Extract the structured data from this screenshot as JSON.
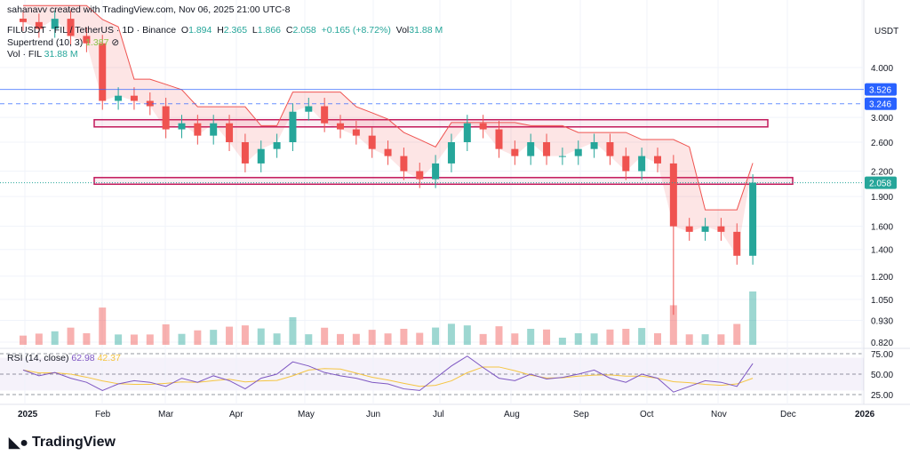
{
  "attribution": "sahanavv created with TradingView.com, Nov 06, 2025 21:00 UTC-8",
  "legend": {
    "symbol": "FILUSDT · FIL / TetherUS · 1D · Binance",
    "open_label": "O",
    "open": "1.894",
    "high_label": "H",
    "high": "2.365",
    "low_label": "L",
    "low": "1.866",
    "close_label": "C",
    "close": "2.058",
    "change": "+0.165 (+8.72%)",
    "vol_label": "Vol",
    "vol": "31.88 M",
    "supertrend": "Supertrend (10, 3)",
    "supertrend_value": "1.387",
    "volume": "Vol · FIL",
    "volume_value": "31.88 M",
    "rsi": "RSI (14, close)",
    "rsi_value": "62.98",
    "rsi_ma_value": "42.37"
  },
  "logo_text": "TradingView",
  "chart_data": {
    "type": "candlestick",
    "currency": "USDT",
    "scale": "log",
    "ylim": [
      0.78,
      4.9
    ],
    "price_ticks": [
      "4.000",
      "3.000",
      "2.600",
      "2.200",
      "1.900",
      "1.600",
      "1.400",
      "1.200",
      "1.050",
      "0.930",
      "0.820"
    ],
    "rsi_ticks": [
      "75.00",
      "50.00",
      "25.00"
    ],
    "x_ticks": [
      "2025",
      "Feb",
      "Mar",
      "Apr",
      "May",
      "Jun",
      "Jul",
      "Aug",
      "Sep",
      "Oct",
      "Nov",
      "Dec",
      "2026"
    ],
    "weekly_close": [
      5.2,
      5.0,
      5.3,
      4.8,
      4.6,
      3.3,
      3.4,
      3.3,
      3.2,
      2.8,
      2.9,
      2.7,
      2.9,
      2.6,
      2.3,
      2.5,
      2.6,
      3.1,
      3.2,
      2.9,
      2.8,
      2.7,
      2.5,
      2.4,
      2.2,
      2.1,
      2.3,
      2.6,
      2.9,
      2.8,
      2.5,
      2.4,
      2.6,
      2.4,
      2.4,
      2.5,
      2.6,
      2.4,
      2.2,
      2.4,
      2.3,
      1.6,
      1.55,
      1.6,
      1.55,
      1.35,
      2.058
    ],
    "rsi": [
      55,
      48,
      52,
      45,
      40,
      30,
      38,
      42,
      40,
      35,
      45,
      40,
      48,
      42,
      32,
      45,
      50,
      65,
      60,
      52,
      48,
      45,
      40,
      38,
      32,
      30,
      45,
      60,
      72,
      58,
      45,
      42,
      50,
      44,
      46,
      50,
      55,
      45,
      40,
      50,
      45,
      28,
      35,
      42,
      40,
      35,
      62.98
    ],
    "lines": [
      {
        "price": 3.526,
        "label": "3.526",
        "style": "solid",
        "color": "#2962ff"
      },
      {
        "price": 3.246,
        "label": "3.246",
        "style": "dashed",
        "color": "#2962ff"
      }
    ],
    "zones": [
      {
        "low": 2.84,
        "high": 2.96,
        "color": "#c2185b"
      },
      {
        "low": 2.04,
        "high": 2.12,
        "color": "#c2185b"
      }
    ],
    "last_price": "2.058",
    "colors": {
      "up": "#26a69a",
      "down": "#ef5350",
      "rsi": "#7e57c2",
      "rsi_ma": "#f5c542",
      "supertrend_down": "#ef5350",
      "supertrend_up": "#4caf50"
    }
  }
}
